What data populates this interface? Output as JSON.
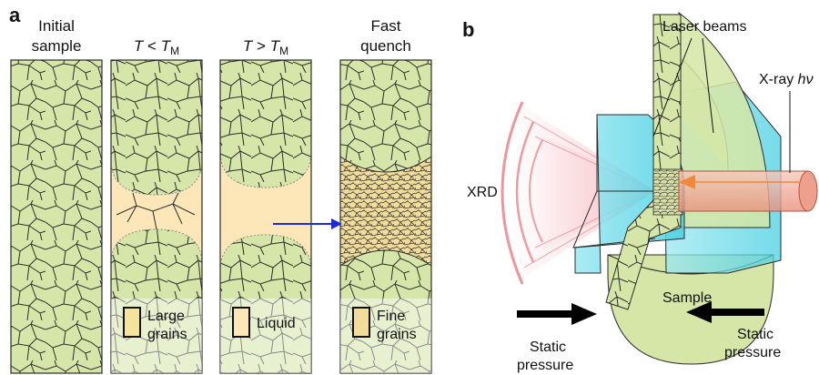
{
  "panel_a": {
    "letter": "a",
    "columns": [
      {
        "line1": "Initial",
        "line2": "sample"
      },
      {
        "line1_pre": "T",
        "line1_mid": " < ",
        "line1_var": "T",
        "line1_sub": "M"
      },
      {
        "line1_pre": "T",
        "line1_mid": " > ",
        "line1_var": "T",
        "line1_sub": "M"
      },
      {
        "line1": "Fast",
        "line2": "quench"
      }
    ],
    "legend": [
      {
        "line1": "Large",
        "line2": "grains"
      },
      {
        "line1": "Liquid",
        "line2": ""
      },
      {
        "line1": "Fine",
        "line2": "grains"
      }
    ],
    "colors": {
      "grain": "#d6e6a8",
      "grain_edge": "#2b2b2b",
      "liquid": "#fde7b8",
      "fine_grain": "#f1dc9a",
      "arrow": "#1f2bd6"
    }
  },
  "panel_b": {
    "letter": "b",
    "laser_label": "Laser beams",
    "xray_label_pre": "X-ray ",
    "xray_label_var": "hν",
    "xrd_label": "XRD",
    "sample_label": "Sample",
    "static_left": {
      "line1": "Static",
      "line2": "pressure"
    },
    "static_right": {
      "line1": "Static",
      "line2": "pressure"
    },
    "colors": {
      "anvil": "#6ad8e8",
      "disc": "#d5e6a6",
      "xray_beam": "#f2a898",
      "xrd_rings": "#e8707a",
      "xray_arrow": "#f08a3a"
    }
  }
}
